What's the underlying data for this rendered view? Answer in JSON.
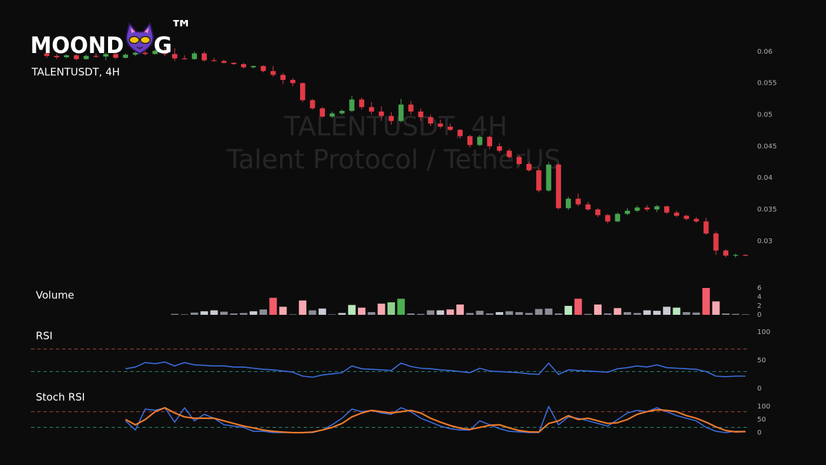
{
  "logo": {
    "left": "MOOND",
    "right": "G",
    "mark": "™"
  },
  "watermark": {
    "line1": "TALENTUSDT, 4H",
    "line2": "Talent Protocol / TetherUS"
  },
  "chart_data": [
    {
      "type": "candlestick",
      "title": "TALENTUSDT, 4H",
      "ylim": [
        0.0265,
        0.0615
      ],
      "yticks": [
        0.03,
        0.035,
        0.04,
        0.045,
        0.05,
        0.055,
        0.06
      ],
      "up_color": "#46a34f",
      "down_color": "#e23a46",
      "series": {
        "open": [
          0.0597,
          0.0593,
          0.0591,
          0.0594,
          0.0588,
          0.0593,
          0.0592,
          0.0596,
          0.059,
          0.0595,
          0.0598,
          0.0596,
          0.0601,
          0.0596,
          0.0589,
          0.0588,
          0.0597,
          0.0586,
          0.0585,
          0.0582,
          0.058,
          0.0575,
          0.0577,
          0.0569,
          0.0563,
          0.0555,
          0.055,
          0.0523,
          0.051,
          0.0497,
          0.0502,
          0.0506,
          0.0524,
          0.0512,
          0.0505,
          0.0498,
          0.049,
          0.0516,
          0.0505,
          0.0496,
          0.0486,
          0.0481,
          0.0476,
          0.0466,
          0.0452,
          0.0465,
          0.045,
          0.0443,
          0.0433,
          0.0422,
          0.0412,
          0.038,
          0.0421,
          0.0352,
          0.0367,
          0.0358,
          0.035,
          0.0341,
          0.0331,
          0.0343,
          0.0348,
          0.0353,
          0.035,
          0.0355,
          0.0345,
          0.034,
          0.0335,
          0.0331,
          0.0312,
          0.0285,
          0.0277,
          0.0278
        ],
        "high": [
          0.06,
          0.0596,
          0.0595,
          0.0596,
          0.0595,
          0.0597,
          0.0598,
          0.0599,
          0.0597,
          0.0601,
          0.0604,
          0.0603,
          0.0605,
          0.0605,
          0.0594,
          0.06,
          0.06,
          0.059,
          0.0587,
          0.0583,
          0.0582,
          0.0578,
          0.0578,
          0.0577,
          0.0566,
          0.0558,
          0.0551,
          0.0525,
          0.0512,
          0.0505,
          0.0508,
          0.053,
          0.0527,
          0.052,
          0.0513,
          0.0504,
          0.0525,
          0.0522,
          0.051,
          0.05,
          0.0492,
          0.0486,
          0.0477,
          0.0468,
          0.0468,
          0.0467,
          0.0455,
          0.0446,
          0.0436,
          0.0425,
          0.0416,
          0.0425,
          0.0423,
          0.037,
          0.0375,
          0.0362,
          0.0352,
          0.0343,
          0.0345,
          0.0352,
          0.0356,
          0.0357,
          0.0357,
          0.0356,
          0.0348,
          0.0342,
          0.0338,
          0.0337,
          0.0315,
          0.0287,
          0.028,
          0.0279
        ],
        "low": [
          0.059,
          0.0588,
          0.0589,
          0.0586,
          0.0587,
          0.059,
          0.0586,
          0.0588,
          0.0589,
          0.0593,
          0.0594,
          0.0595,
          0.0593,
          0.0585,
          0.0587,
          0.0587,
          0.0584,
          0.0584,
          0.0581,
          0.0579,
          0.0573,
          0.0573,
          0.0567,
          0.056,
          0.0548,
          0.0545,
          0.052,
          0.0508,
          0.0495,
          0.0495,
          0.05,
          0.0504,
          0.0508,
          0.05,
          0.049,
          0.0484,
          0.0488,
          0.05,
          0.049,
          0.0482,
          0.0478,
          0.0474,
          0.0462,
          0.0448,
          0.045,
          0.0445,
          0.044,
          0.043,
          0.0419,
          0.041,
          0.0377,
          0.0378,
          0.035,
          0.0349,
          0.0355,
          0.0348,
          0.0338,
          0.0328,
          0.033,
          0.0341,
          0.0346,
          0.0347,
          0.0346,
          0.0343,
          0.0338,
          0.0333,
          0.0329,
          0.031,
          0.0278,
          0.0274,
          0.0274,
          0.0276
        ],
        "close": [
          0.0593,
          0.0591,
          0.0594,
          0.0588,
          0.0593,
          0.0592,
          0.0596,
          0.059,
          0.0595,
          0.0598,
          0.0596,
          0.0601,
          0.0596,
          0.0589,
          0.0588,
          0.0597,
          0.0586,
          0.0585,
          0.0582,
          0.058,
          0.0575,
          0.0577,
          0.0569,
          0.0563,
          0.0555,
          0.055,
          0.0523,
          0.051,
          0.0497,
          0.0502,
          0.0506,
          0.0524,
          0.0512,
          0.0505,
          0.0498,
          0.049,
          0.0516,
          0.0505,
          0.0496,
          0.0486,
          0.0481,
          0.0476,
          0.0466,
          0.0452,
          0.0465,
          0.045,
          0.0443,
          0.0433,
          0.0422,
          0.0412,
          0.038,
          0.0421,
          0.0352,
          0.0367,
          0.0358,
          0.035,
          0.0341,
          0.0331,
          0.0343,
          0.0348,
          0.0353,
          0.035,
          0.0355,
          0.0345,
          0.034,
          0.0335,
          0.0331,
          0.0312,
          0.0285,
          0.0277,
          0.0278,
          0.0277
        ]
      }
    },
    {
      "type": "bar",
      "title": "Volume",
      "ylim": [
        0,
        6
      ],
      "yticks": [
        0,
        2,
        4,
        6
      ],
      "values": [
        null,
        null,
        null,
        null,
        null,
        null,
        null,
        null,
        null,
        null,
        null,
        null,
        null,
        0.2,
        0.1,
        0.5,
        0.8,
        1.0,
        0.7,
        0.3,
        0.4,
        0.8,
        1.2,
        3.8,
        1.8,
        0.1,
        3.2,
        1.0,
        1.4,
        0.1,
        0.4,
        2.2,
        1.6,
        0.6,
        2.5,
        2.8,
        3.6,
        0.3,
        0.2,
        1.0,
        1.0,
        1.2,
        2.3,
        0.4,
        0.9,
        0.3,
        0.6,
        0.8,
        0.6,
        0.4,
        1.3,
        1.4,
        0.3,
        2.0,
        3.6,
        0.2,
        2.3,
        0.3,
        1.5,
        0.6,
        0.4,
        1.0,
        0.9,
        1.8,
        1.6,
        0.6,
        0.5,
        6.0,
        3.0,
        0.3,
        0.2,
        0.1
      ],
      "colors": [
        null,
        null,
        null,
        null,
        null,
        null,
        null,
        null,
        null,
        null,
        null,
        null,
        null,
        "#8a8d96",
        "#8a8d96",
        "#8a8d96",
        "#c9ccd4",
        "#c9ccd4",
        "#8a8d96",
        "#8a8d96",
        "#8a8d96",
        "#c9ccd4",
        "#8a8d96",
        "#f25c6a",
        "#f7a8b0",
        "#8a8d96",
        "#f7a8b0",
        "#8a8d96",
        "#c9ccd4",
        "#8a8d96",
        "#c9ccd4",
        "#b9e8bd",
        "#f7a8b0",
        "#8a8d96",
        "#f7a8b0",
        "#8fd08f",
        "#4caf50",
        "#8a8d96",
        "#8a8d96",
        "#8a8d96",
        "#c9ccd4",
        "#f7a8b0",
        "#f7a8b0",
        "#8a8d96",
        "#8a8d96",
        "#8a8d96",
        "#c9ccd4",
        "#8a8d96",
        "#8a8d96",
        "#8a8d96",
        "#8a8d96",
        "#8a8d96",
        "#8a8d96",
        "#b9e8bd",
        "#f25c6a",
        "#8a8d96",
        "#f7a8b0",
        "#8a8d96",
        "#f7a8b0",
        "#8a8d96",
        "#8a8d96",
        "#c9ccd4",
        "#c9ccd4",
        "#c9ccd4",
        "#b9e8bd",
        "#8a8d96",
        "#8a8d96",
        "#f25c6a",
        "#f7a8b0",
        "#8a8d96",
        "#8a8d96",
        "#8a8d96"
      ]
    },
    {
      "type": "line",
      "title": "RSI",
      "ylim": [
        0,
        100
      ],
      "yticks": [
        0,
        50,
        100
      ],
      "hlines": [
        {
          "value": 70,
          "color": "#a8443a"
        },
        {
          "value": 30,
          "color": "#2e8a7a"
        }
      ],
      "series": [
        {
          "color": "#3b6fe0",
          "values": [
            null,
            null,
            null,
            null,
            null,
            null,
            null,
            null,
            35,
            38,
            46,
            44,
            47,
            40,
            46,
            42,
            41,
            40,
            40,
            38,
            38,
            36,
            34,
            33,
            31,
            29,
            22,
            20,
            24,
            26,
            28,
            40,
            35,
            34,
            33,
            32,
            45,
            39,
            36,
            35,
            33,
            32,
            30,
            28,
            36,
            31,
            30,
            29,
            28,
            26,
            25,
            45,
            25,
            33,
            32,
            31,
            30,
            29,
            35,
            37,
            40,
            38,
            42,
            37,
            36,
            35,
            34,
            30,
            22,
            21,
            22,
            22
          ]
        }
      ]
    },
    {
      "type": "line",
      "title": "Stoch RSI",
      "ylim": [
        0,
        100
      ],
      "yticks": [
        0,
        50,
        100
      ],
      "hlines": [
        {
          "value": 80,
          "color": "#a8443a"
        },
        {
          "value": 20,
          "color": "#2e8a7a"
        }
      ],
      "series": [
        {
          "color": "#3b6fe0",
          "values": [
            null,
            null,
            null,
            null,
            null,
            null,
            null,
            null,
            45,
            10,
            90,
            85,
            95,
            40,
            95,
            45,
            70,
            55,
            30,
            25,
            20,
            5,
            5,
            0,
            0,
            0,
            0,
            0,
            10,
            30,
            55,
            90,
            80,
            85,
            75,
            70,
            95,
            80,
            55,
            40,
            25,
            15,
            10,
            10,
            45,
            30,
            15,
            5,
            3,
            0,
            0,
            100,
            30,
            60,
            55,
            45,
            35,
            25,
            50,
            75,
            85,
            80,
            95,
            80,
            65,
            55,
            45,
            20,
            5,
            0,
            5,
            5
          ]
        },
        {
          "color": "#ef7a2a",
          "values": [
            null,
            null,
            null,
            null,
            null,
            null,
            null,
            null,
            50,
            30,
            50,
            80,
            95,
            75,
            60,
            55,
            55,
            55,
            45,
            35,
            25,
            18,
            10,
            5,
            2,
            0,
            0,
            2,
            10,
            20,
            35,
            60,
            75,
            85,
            80,
            75,
            80,
            85,
            75,
            55,
            40,
            27,
            17,
            12,
            20,
            28,
            30,
            18,
            8,
            3,
            2,
            35,
            45,
            65,
            50,
            55,
            45,
            35,
            38,
            50,
            70,
            80,
            87,
            85,
            80,
            65,
            55,
            40,
            22,
            8,
            3,
            4
          ]
        }
      ]
    }
  ]
}
